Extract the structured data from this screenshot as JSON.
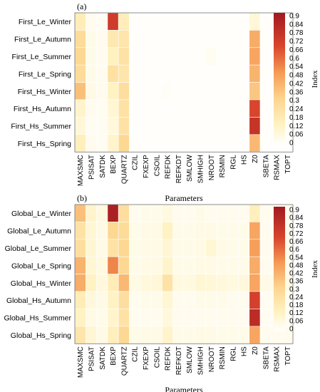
{
  "chart_data": [
    {
      "type": "heatmap",
      "panel_label": "(a)",
      "xlabel": "Parameters",
      "colorbar_label": "Index",
      "colorbar_ticks": [
        "0.9",
        "0.84",
        "0.78",
        "0.72",
        "0.66",
        "0.6",
        "0.54",
        "0.48",
        "0.42",
        "0.36",
        "0.3",
        "0.24",
        "0.18",
        "0.12",
        "0.06",
        "0"
      ],
      "zlim": [
        0,
        0.9
      ],
      "x": [
        "MAXSMC",
        "PSISAT",
        "SATDK",
        "BEXP",
        "QUARTZ",
        "CZIL",
        "FXEXP",
        "CSOIL",
        "REFDK",
        "REFKDT",
        "SMLOW",
        "SMHIGH",
        "NROOT",
        "RSMIN",
        "RGL",
        "HS",
        "Z0",
        "SBETA",
        "RSMAX",
        "TOPT"
      ],
      "y": [
        "First_Le_Winter",
        "First_Le_Autumn",
        "First_Le_Summer",
        "First_Le_Spring",
        "First_Hs_Winter",
        "First_Hs_Autumn",
        "First_Hs_Summer",
        "First_Hs_Spring"
      ],
      "values": [
        [
          0.18,
          0.04,
          0.03,
          0.72,
          0.17,
          0.01,
          0.01,
          0.01,
          0.01,
          0.01,
          0.01,
          0.01,
          0.01,
          0.01,
          0.01,
          0.01,
          0.09,
          0.01,
          0.01,
          0.01
        ],
        [
          0.28,
          0.05,
          0.04,
          0.2,
          0.22,
          0.01,
          0.01,
          0.01,
          0.01,
          0.01,
          0.01,
          0.01,
          0.01,
          0.01,
          0.01,
          0.01,
          0.44,
          0.01,
          0.01,
          0.01
        ],
        [
          0.3,
          0.05,
          0.04,
          0.15,
          0.24,
          0.01,
          0.01,
          0.01,
          0.01,
          0.01,
          0.01,
          0.01,
          0.03,
          0.01,
          0.01,
          0.01,
          0.46,
          0.01,
          0.01,
          0.01
        ],
        [
          0.28,
          0.05,
          0.04,
          0.25,
          0.22,
          0.01,
          0.01,
          0.01,
          0.01,
          0.01,
          0.01,
          0.01,
          0.01,
          0.01,
          0.01,
          0.01,
          0.42,
          0.01,
          0.01,
          0.01
        ],
        [
          0.38,
          0.06,
          0.04,
          0.14,
          0.26,
          0.01,
          0.01,
          0.01,
          0.02,
          0.01,
          0.01,
          0.01,
          0.01,
          0.01,
          0.01,
          0.01,
          0.36,
          0.01,
          0.01,
          0.01
        ],
        [
          0.12,
          0.04,
          0.03,
          0.1,
          0.24,
          0.01,
          0.01,
          0.01,
          0.01,
          0.01,
          0.01,
          0.01,
          0.01,
          0.01,
          0.01,
          0.01,
          0.68,
          0.01,
          0.01,
          0.01
        ],
        [
          0.09,
          0.03,
          0.03,
          0.08,
          0.24,
          0.01,
          0.01,
          0.01,
          0.01,
          0.01,
          0.01,
          0.01,
          0.01,
          0.01,
          0.01,
          0.01,
          0.76,
          0.01,
          0.01,
          0.01
        ],
        [
          0.16,
          0.04,
          0.03,
          0.12,
          0.3,
          0.01,
          0.01,
          0.01,
          0.01,
          0.01,
          0.01,
          0.01,
          0.01,
          0.01,
          0.01,
          0.01,
          0.4,
          0.01,
          0.01,
          0.01
        ]
      ]
    },
    {
      "type": "heatmap",
      "panel_label": "(b)",
      "xlabel": "Parameters",
      "colorbar_label": "Index",
      "colorbar_ticks": [
        "0.9",
        "0.84",
        "0.78",
        "0.72",
        "0.66",
        "0.6",
        "0.54",
        "0.48",
        "0.42",
        "0.36",
        "0.3",
        "0.24",
        "0.18",
        "0.12",
        "0.06",
        "0"
      ],
      "zlim": [
        0,
        0.9
      ],
      "x": [
        "MAXSMC",
        "PSISAT",
        "SATDK",
        "BEXP",
        "QUARTZ",
        "CZIL",
        "FXEXP",
        "CSOIL",
        "REFDK",
        "REFKDT",
        "SMLOW",
        "SMHIGH",
        "NROOT",
        "RSMIN",
        "RGL",
        "HS",
        "Z0",
        "SBETA",
        "RSMAX",
        "TOPT"
      ],
      "y": [
        "Global_Le_Winter",
        "Global_Le_Autumn",
        "Global_Le_Summer",
        "Global_Le_Spring",
        "Global_Hs_Winter",
        "Global_Hs_Autumn",
        "Global_Hs_Summer",
        "Global_Hs_Spring"
      ],
      "values": [
        [
          0.38,
          0.12,
          0.07,
          0.86,
          0.26,
          0.04,
          0.05,
          0.05,
          0.07,
          0.04,
          0.04,
          0.05,
          0.04,
          0.04,
          0.04,
          0.04,
          0.16,
          0.04,
          0.04,
          0.04
        ],
        [
          0.24,
          0.1,
          0.06,
          0.3,
          0.28,
          0.05,
          0.06,
          0.06,
          0.14,
          0.05,
          0.05,
          0.06,
          0.06,
          0.05,
          0.05,
          0.05,
          0.46,
          0.04,
          0.04,
          0.04
        ],
        [
          0.26,
          0.1,
          0.06,
          0.24,
          0.3,
          0.05,
          0.06,
          0.06,
          0.1,
          0.05,
          0.05,
          0.06,
          0.1,
          0.06,
          0.05,
          0.05,
          0.48,
          0.04,
          0.04,
          0.04
        ],
        [
          0.42,
          0.1,
          0.07,
          0.54,
          0.3,
          0.05,
          0.06,
          0.06,
          0.12,
          0.05,
          0.05,
          0.06,
          0.06,
          0.05,
          0.05,
          0.05,
          0.44,
          0.04,
          0.04,
          0.04
        ],
        [
          0.44,
          0.14,
          0.08,
          0.18,
          0.4,
          0.06,
          0.08,
          0.09,
          0.24,
          0.07,
          0.07,
          0.1,
          0.09,
          0.08,
          0.07,
          0.08,
          0.46,
          0.06,
          0.06,
          0.06
        ],
        [
          0.18,
          0.08,
          0.06,
          0.14,
          0.26,
          0.04,
          0.05,
          0.05,
          0.1,
          0.04,
          0.04,
          0.05,
          0.05,
          0.05,
          0.04,
          0.04,
          0.7,
          0.03,
          0.03,
          0.03
        ],
        [
          0.14,
          0.06,
          0.05,
          0.12,
          0.24,
          0.04,
          0.04,
          0.04,
          0.08,
          0.04,
          0.04,
          0.04,
          0.04,
          0.04,
          0.04,
          0.04,
          0.8,
          0.03,
          0.03,
          0.03
        ],
        [
          0.22,
          0.1,
          0.06,
          0.16,
          0.3,
          0.05,
          0.06,
          0.06,
          0.12,
          0.05,
          0.05,
          0.06,
          0.06,
          0.05,
          0.05,
          0.05,
          0.46,
          0.04,
          0.04,
          0.04
        ]
      ]
    }
  ]
}
